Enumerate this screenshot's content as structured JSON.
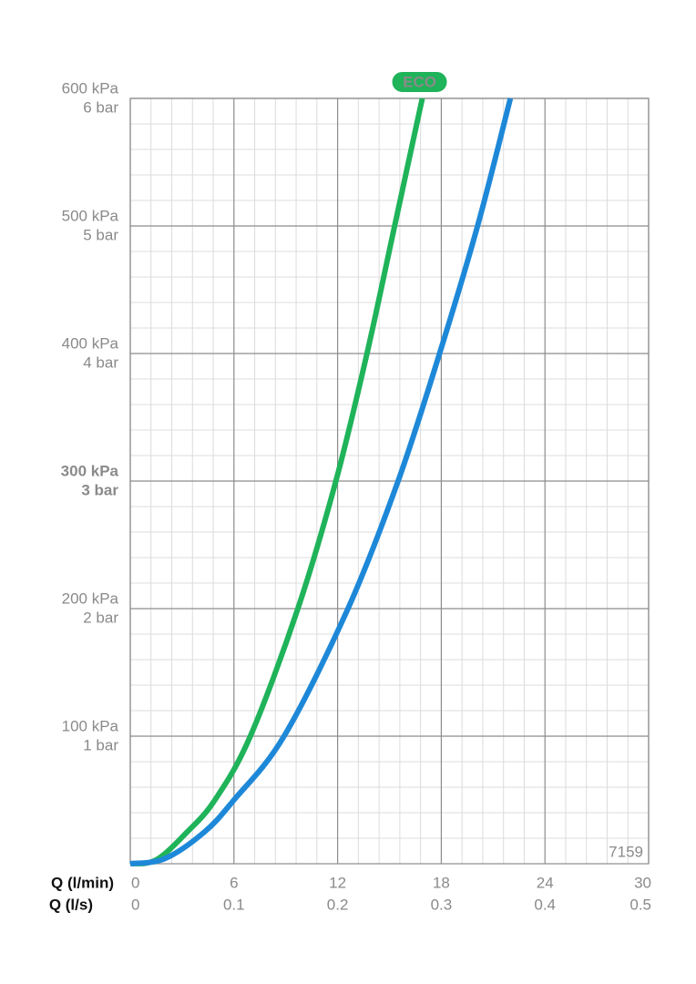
{
  "chart_data": {
    "type": "line",
    "xlabel": "Q (l/min)",
    "xlabel2": "Q (l/s)",
    "xlim": [
      0,
      30
    ],
    "xticks": [
      0,
      6,
      12,
      18,
      24,
      30
    ],
    "xticks2": [
      {
        "value": 0,
        "label": "0"
      },
      {
        "value": 6,
        "label": "0.1"
      },
      {
        "value": 12,
        "label": "0.2"
      },
      {
        "value": 18,
        "label": "0.3"
      },
      {
        "value": 24,
        "label": "0.4"
      },
      {
        "value": 30,
        "label": "0.5"
      }
    ],
    "ylim": [
      0,
      600
    ],
    "yticks": [
      {
        "value": 100,
        "label": "100 kPa"
      },
      {
        "value": 200,
        "label": "200 kPa"
      },
      {
        "value": 300,
        "label": "300 kPa"
      },
      {
        "value": 400,
        "label": "400 kPa"
      },
      {
        "value": 500,
        "label": "500 kPa"
      },
      {
        "value": 600,
        "label": "600 kPa"
      }
    ],
    "yticks2": [
      {
        "value": 100,
        "label": "1 bar"
      },
      {
        "value": 200,
        "label": "2 bar"
      },
      {
        "value": 300,
        "label": "3 bar"
      },
      {
        "value": 400,
        "label": "4 bar"
      },
      {
        "value": 500,
        "label": "5 bar"
      },
      {
        "value": 600,
        "label": "6 bar"
      }
    ],
    "highlight_ytick": 300,
    "grid": true,
    "minor_divisions": 5,
    "annotation": "7159",
    "series": [
      {
        "name": "ECO",
        "color": "#1fb35a",
        "x": [
          0,
          1.5,
          3.3,
          4.9,
          6.95,
          9.7,
          11.9,
          13.7,
          15.3,
          16.9
        ],
        "values": [
          0,
          3,
          25,
          50,
          100,
          200,
          300,
          400,
          500,
          600
        ]
      },
      {
        "color": "#1e88d8",
        "x": [
          0,
          2,
          4.3,
          6.0,
          8.9,
          12.6,
          15.5,
          17.9,
          20.1,
          22.0
        ],
        "values": [
          0,
          4,
          25,
          50,
          100,
          200,
          300,
          400,
          500,
          600
        ]
      }
    ]
  }
}
